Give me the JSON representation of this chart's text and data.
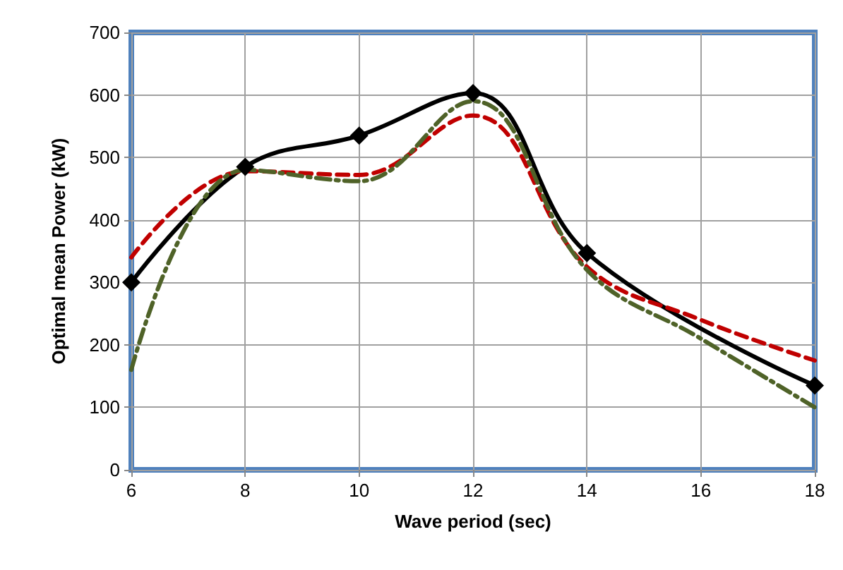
{
  "chart_data": {
    "type": "line",
    "xlabel": "Wave period (sec)",
    "ylabel": "Optimal mean Power (kW)",
    "xlim": [
      6,
      18
    ],
    "xticks": [
      6,
      8,
      10,
      12,
      14,
      16,
      18
    ],
    "ylim": [
      0,
      700
    ],
    "yticks": [
      0,
      100,
      200,
      300,
      400,
      500,
      600,
      700
    ],
    "grid": true,
    "series": [
      {
        "color": "#000000",
        "x": [
          6,
          8,
          10,
          12,
          14,
          18
        ],
        "values": [
          300,
          485,
          535,
          603,
          347,
          135
        ],
        "marker": "diamond",
        "line_style": "solid"
      },
      {
        "color": "#c00000",
        "x": [
          6,
          8,
          10,
          12,
          14,
          16,
          18
        ],
        "values": [
          340,
          478,
          472,
          567,
          325,
          240,
          175
        ],
        "marker": "none",
        "line_style": "dashed"
      },
      {
        "color": "#4f6228",
        "x": [
          6,
          8,
          10,
          12,
          14,
          16,
          18
        ],
        "values": [
          160,
          480,
          462,
          590,
          320,
          210,
          100
        ],
        "marker": "none",
        "line_style": "dashdot"
      }
    ]
  }
}
